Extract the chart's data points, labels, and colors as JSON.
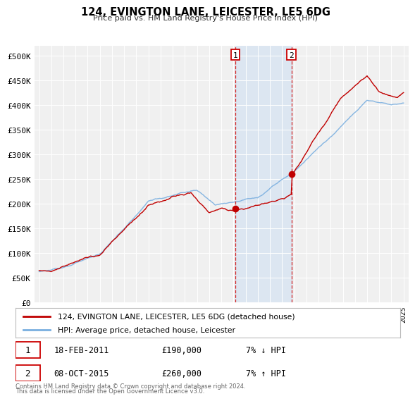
{
  "title": "124, EVINGTON LANE, LEICESTER, LE5 6DG",
  "subtitle": "Price paid vs. HM Land Registry's House Price Index (HPI)",
  "transaction1": {
    "date": "2011-02-18",
    "price": 190000,
    "label": "18-FEB-2011",
    "pct": "7% ↓ HPI",
    "num": "1"
  },
  "transaction2": {
    "date": "2015-10-08",
    "price": 260000,
    "label": "08-OCT-2015",
    "pct": "7% ↑ HPI",
    "num": "2"
  },
  "legend1": "124, EVINGTON LANE, LEICESTER, LE5 6DG (detached house)",
  "legend2": "HPI: Average price, detached house, Leicester",
  "footer1": "Contains HM Land Registry data © Crown copyright and database right 2024.",
  "footer2": "This data is licensed under the Open Government Licence v3.0.",
  "hpi_color": "#7aafe0",
  "price_color": "#c00000",
  "marker_color": "#c00000",
  "shade_color": "#dce6f1",
  "dashed_color": "#cc0000",
  "ylabel_vals": [
    "£0",
    "£50K",
    "£100K",
    "£150K",
    "£200K",
    "£250K",
    "£300K",
    "£350K",
    "£400K",
    "£450K",
    "£500K"
  ],
  "ylabel_nums": [
    0,
    50000,
    100000,
    150000,
    200000,
    250000,
    300000,
    350000,
    400000,
    450000,
    500000
  ],
  "background_color": "#ffffff",
  "plot_bg": "#f0f0f0",
  "grid_color": "#ffffff"
}
